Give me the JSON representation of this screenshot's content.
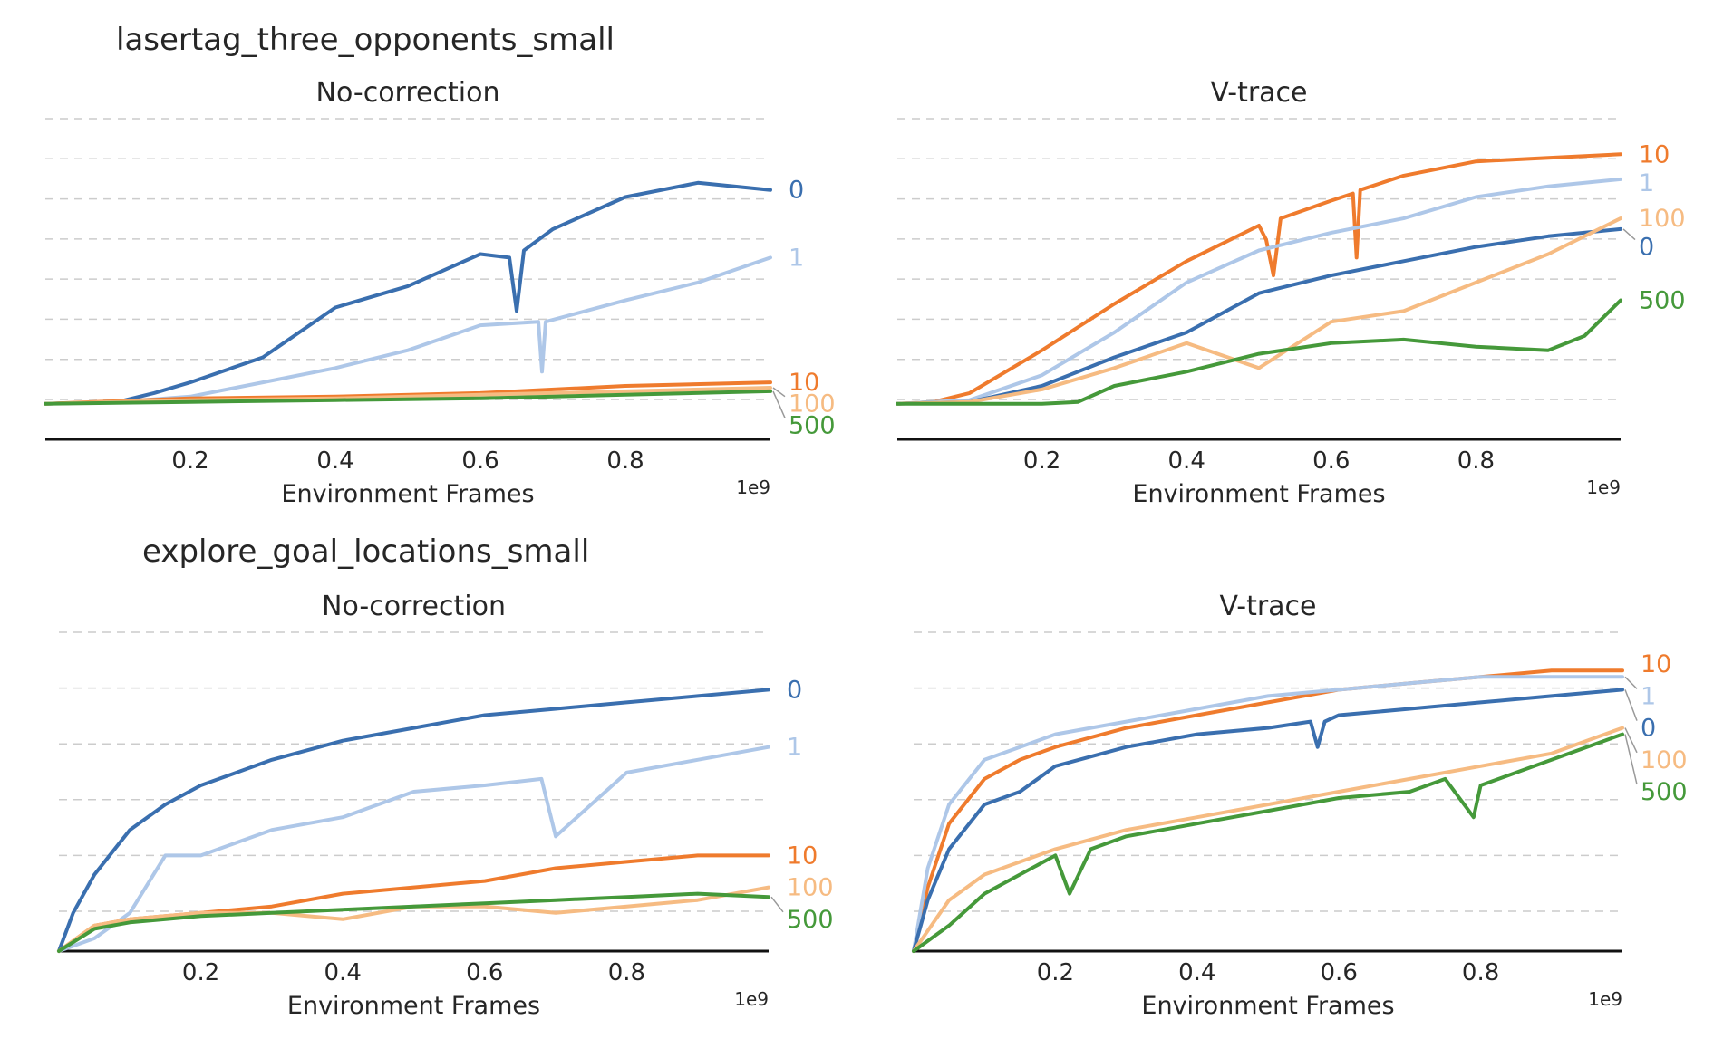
{
  "figure": {
    "env_titles": [
      "lasertag_three_opponents_small",
      "explore_goal_locations_small"
    ],
    "xlabel": "Environment Frames",
    "x_multiplier": "1e9"
  },
  "colors": {
    "0": "#3a6faf",
    "1": "#aec7e8",
    "10": "#ef7b2d",
    "100": "#f6bb82",
    "500": "#45993a",
    "grid": "#cccccc",
    "axis": "#111111",
    "text": "#262626"
  },
  "chart_data": [
    {
      "type": "line",
      "env": "lasertag_three_opponents_small",
      "title": "No-correction",
      "xlabel": "Environment Frames",
      "xlim": [
        0,
        1.0
      ],
      "xticks": [
        0.2,
        0.4,
        0.6,
        0.8
      ],
      "ylim": [
        -1,
        8
      ],
      "grid": true,
      "legend": "line-end labels (right)",
      "series": [
        {
          "name": "0",
          "x": [
            0,
            0.1,
            0.15,
            0.2,
            0.3,
            0.4,
            0.5,
            0.6,
            0.64,
            0.65,
            0.66,
            0.7,
            0.8,
            0.9,
            1.0
          ],
          "y": [
            0,
            0.05,
            0.3,
            0.6,
            1.3,
            2.7,
            3.3,
            4.2,
            4.1,
            2.6,
            4.3,
            4.9,
            5.8,
            6.2,
            6.0
          ],
          "label_y": 6.0
        },
        {
          "name": "1",
          "x": [
            0,
            0.1,
            0.2,
            0.3,
            0.4,
            0.5,
            0.6,
            0.68,
            0.685,
            0.69,
            0.8,
            0.9,
            1.0
          ],
          "y": [
            0,
            0.05,
            0.2,
            0.6,
            1.0,
            1.5,
            2.2,
            2.3,
            0.9,
            2.3,
            2.9,
            3.4,
            4.1
          ],
          "label_y": 4.1
        },
        {
          "name": "10",
          "x": [
            0,
            0.2,
            0.4,
            0.6,
            0.8,
            1.0
          ],
          "y": [
            0,
            0.15,
            0.2,
            0.3,
            0.5,
            0.6
          ],
          "label_y": 0.6
        },
        {
          "name": "100",
          "x": [
            0,
            0.2,
            0.4,
            0.6,
            0.8,
            1.0
          ],
          "y": [
            0,
            0.1,
            0.15,
            0.25,
            0.35,
            0.45
          ],
          "label_y": 0.0
        },
        {
          "name": "500",
          "x": [
            0,
            0.2,
            0.4,
            0.6,
            0.8,
            1.0
          ],
          "y": [
            0,
            0.05,
            0.1,
            0.15,
            0.25,
            0.35
          ],
          "label_y": -0.6
        }
      ]
    },
    {
      "type": "line",
      "env": "lasertag_three_opponents_small",
      "title": "V-trace",
      "xlabel": "Environment Frames",
      "xlim": [
        0,
        1.0
      ],
      "xticks": [
        0.2,
        0.4,
        0.6,
        0.8
      ],
      "ylim": [
        -1,
        8
      ],
      "grid": true,
      "legend": "line-end labels (right)",
      "series": [
        {
          "name": "10",
          "x": [
            0,
            0.05,
            0.1,
            0.2,
            0.3,
            0.4,
            0.5,
            0.51,
            0.52,
            0.53,
            0.6,
            0.63,
            0.635,
            0.64,
            0.7,
            0.8,
            0.9,
            1.0
          ],
          "y": [
            0,
            0.05,
            0.3,
            1.5,
            2.8,
            4.0,
            5.0,
            4.6,
            3.6,
            5.2,
            5.7,
            5.9,
            4.1,
            6.0,
            6.4,
            6.8,
            6.9,
            7.0
          ],
          "label_y": 7.0
        },
        {
          "name": "1",
          "x": [
            0,
            0.1,
            0.2,
            0.3,
            0.4,
            0.5,
            0.6,
            0.7,
            0.8,
            0.9,
            1.0
          ],
          "y": [
            0,
            0.1,
            0.8,
            2.0,
            3.4,
            4.3,
            4.8,
            5.2,
            5.8,
            6.1,
            6.3
          ],
          "label_y": 6.2
        },
        {
          "name": "0",
          "x": [
            0,
            0.1,
            0.2,
            0.3,
            0.4,
            0.5,
            0.6,
            0.7,
            0.8,
            0.9,
            1.0
          ],
          "y": [
            0,
            0.05,
            0.5,
            1.3,
            2.0,
            3.1,
            3.6,
            4.0,
            4.4,
            4.7,
            4.9
          ],
          "label_y": 4.4
        },
        {
          "name": "100",
          "x": [
            0,
            0.1,
            0.2,
            0.3,
            0.4,
            0.5,
            0.6,
            0.7,
            0.8,
            0.9,
            1.0
          ],
          "y": [
            0,
            0.05,
            0.4,
            1.0,
            1.7,
            1.0,
            2.3,
            2.6,
            3.4,
            4.2,
            5.2
          ],
          "label_y": 5.2
        },
        {
          "name": "500",
          "x": [
            0,
            0.1,
            0.2,
            0.25,
            0.3,
            0.4,
            0.5,
            0.6,
            0.7,
            0.8,
            0.9,
            0.95,
            1.0
          ],
          "y": [
            0,
            0,
            0,
            0.05,
            0.5,
            0.9,
            1.4,
            1.7,
            1.8,
            1.6,
            1.5,
            1.9,
            2.9
          ],
          "label_y": 2.9
        }
      ]
    },
    {
      "type": "line",
      "env": "explore_goal_locations_small",
      "title": "No-correction",
      "xlabel": "Environment Frames",
      "xlim": [
        0,
        1.0
      ],
      "xticks": [
        0.2,
        0.4,
        0.6,
        0.8
      ],
      "ylim": [
        0,
        5
      ],
      "grid": true,
      "legend": "line-end labels (right)",
      "series": [
        {
          "name": "0",
          "x": [
            0,
            0.02,
            0.05,
            0.1,
            0.15,
            0.2,
            0.3,
            0.4,
            0.5,
            0.6,
            0.7,
            0.8,
            0.9,
            1.0
          ],
          "y": [
            0,
            0.6,
            1.2,
            1.9,
            2.3,
            2.6,
            3.0,
            3.3,
            3.5,
            3.7,
            3.8,
            3.9,
            4.0,
            4.1
          ],
          "label_y": 4.1
        },
        {
          "name": "1",
          "x": [
            0,
            0.05,
            0.1,
            0.15,
            0.2,
            0.3,
            0.4,
            0.5,
            0.6,
            0.68,
            0.7,
            0.8,
            0.9,
            1.0
          ],
          "y": [
            0,
            0.2,
            0.6,
            1.5,
            1.5,
            1.9,
            2.1,
            2.5,
            2.6,
            2.7,
            1.8,
            2.8,
            3.0,
            3.2
          ],
          "label_y": 3.2
        },
        {
          "name": "10",
          "x": [
            0,
            0.05,
            0.1,
            0.2,
            0.3,
            0.4,
            0.5,
            0.6,
            0.7,
            0.8,
            0.9,
            1.0
          ],
          "y": [
            0,
            0.4,
            0.5,
            0.6,
            0.7,
            0.9,
            1.0,
            1.1,
            1.3,
            1.4,
            1.5,
            1.5
          ],
          "label_y": 1.5
        },
        {
          "name": "100",
          "x": [
            0,
            0.05,
            0.1,
            0.2,
            0.3,
            0.4,
            0.5,
            0.6,
            0.7,
            0.8,
            0.9,
            1.0
          ],
          "y": [
            0,
            0.4,
            0.5,
            0.6,
            0.6,
            0.5,
            0.7,
            0.7,
            0.6,
            0.7,
            0.8,
            1.0
          ],
          "label_y": 1.0
        },
        {
          "name": "500",
          "x": [
            0,
            0.05,
            0.1,
            0.2,
            0.3,
            0.4,
            0.5,
            0.6,
            0.7,
            0.8,
            0.9,
            1.0
          ],
          "y": [
            0,
            0.35,
            0.45,
            0.55,
            0.6,
            0.65,
            0.7,
            0.75,
            0.8,
            0.85,
            0.9,
            0.85
          ],
          "label_y": 0.5
        }
      ]
    },
    {
      "type": "line",
      "env": "explore_goal_locations_small",
      "title": "V-trace",
      "xlabel": "Environment Frames",
      "xlim": [
        0,
        1.0
      ],
      "xticks": [
        0.2,
        0.4,
        0.6,
        0.8
      ],
      "ylim": [
        0,
        5
      ],
      "grid": true,
      "legend": "line-end labels (right)",
      "series": [
        {
          "name": "10",
          "x": [
            0,
            0.02,
            0.05,
            0.1,
            0.15,
            0.2,
            0.3,
            0.4,
            0.5,
            0.6,
            0.7,
            0.8,
            0.9,
            1.0
          ],
          "y": [
            0,
            1.0,
            2.0,
            2.7,
            3.0,
            3.2,
            3.5,
            3.7,
            3.9,
            4.1,
            4.2,
            4.3,
            4.4,
            4.4
          ],
          "label_y": 4.5
        },
        {
          "name": "1",
          "x": [
            0,
            0.02,
            0.05,
            0.1,
            0.15,
            0.2,
            0.3,
            0.4,
            0.5,
            0.6,
            0.7,
            0.8,
            0.9,
            1.0
          ],
          "y": [
            0,
            1.3,
            2.3,
            3.0,
            3.2,
            3.4,
            3.6,
            3.8,
            4.0,
            4.1,
            4.2,
            4.3,
            4.3,
            4.3
          ],
          "label_y": 4.0
        },
        {
          "name": "0",
          "x": [
            0,
            0.02,
            0.05,
            0.1,
            0.15,
            0.2,
            0.3,
            0.4,
            0.5,
            0.56,
            0.57,
            0.58,
            0.6,
            0.7,
            0.8,
            0.9,
            1.0
          ],
          "y": [
            0,
            0.8,
            1.6,
            2.3,
            2.5,
            2.9,
            3.2,
            3.4,
            3.5,
            3.6,
            3.2,
            3.6,
            3.7,
            3.8,
            3.9,
            4.0,
            4.1
          ],
          "label_y": 3.5
        },
        {
          "name": "100",
          "x": [
            0,
            0.05,
            0.1,
            0.2,
            0.3,
            0.4,
            0.5,
            0.6,
            0.7,
            0.8,
            0.9,
            1.0
          ],
          "y": [
            0,
            0.8,
            1.2,
            1.6,
            1.9,
            2.1,
            2.3,
            2.5,
            2.7,
            2.9,
            3.1,
            3.5
          ],
          "label_y": 3.0
        },
        {
          "name": "500",
          "x": [
            0,
            0.05,
            0.1,
            0.2,
            0.22,
            0.25,
            0.3,
            0.4,
            0.5,
            0.6,
            0.7,
            0.75,
            0.79,
            0.8,
            0.9,
            1.0
          ],
          "y": [
            0,
            0.4,
            0.9,
            1.5,
            0.9,
            1.6,
            1.8,
            2.0,
            2.2,
            2.4,
            2.5,
            2.7,
            2.1,
            2.6,
            3.0,
            3.4
          ],
          "label_y": 2.5
        }
      ]
    }
  ]
}
